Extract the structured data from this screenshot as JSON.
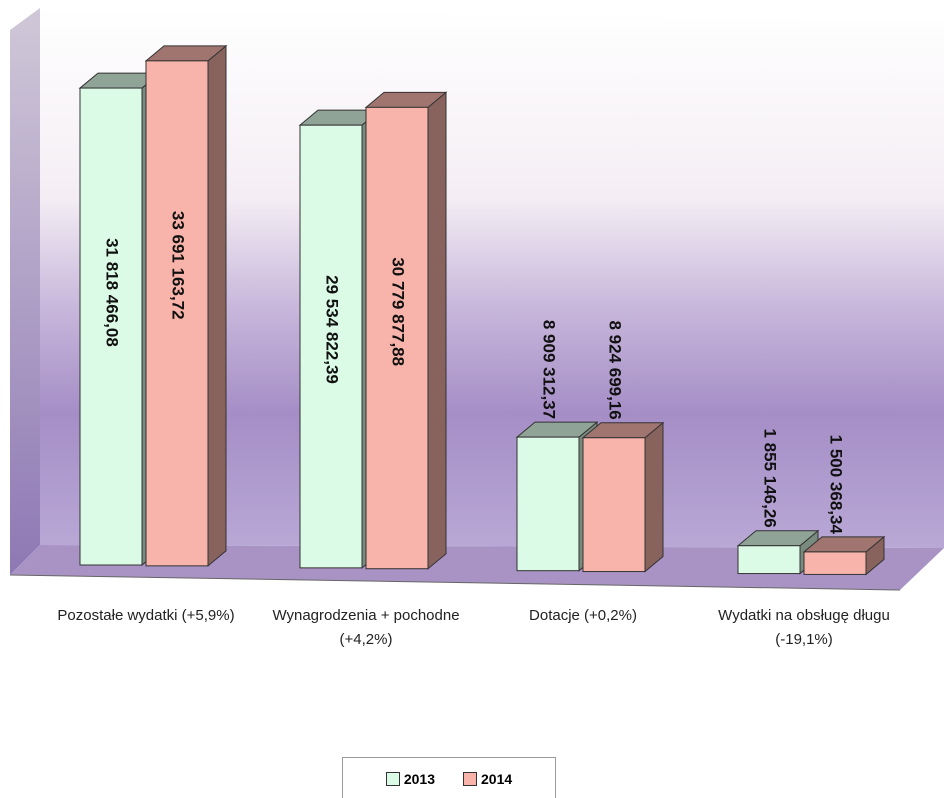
{
  "chart_data": {
    "type": "bar3d",
    "categories": [
      "Pozostałe wydatki (+5,9%)",
      "Wynagrodzenia + pochodne (+4,2%)",
      "Dotacje (+0,2%)",
      "Wydatki na obsługę długu (-19,1%)"
    ],
    "series": [
      {
        "name": "2013",
        "color": "#dcfbe6",
        "values": [
          31818466.08,
          29534822.39,
          8909312.37,
          1855146.26
        ],
        "value_labels": [
          "31 818 466,08",
          "29 534 822,39",
          "8 909 312,37",
          "1 855 146,26"
        ]
      },
      {
        "name": "2014",
        "color": "#f8b4aa",
        "values": [
          33691163.72,
          30779877.88,
          8924699.16,
          1500368.34
        ],
        "value_labels": [
          "33 691 163,72",
          "30 779 877,88",
          "8 924 699,16",
          "1 500 368,34"
        ]
      }
    ],
    "legend": "bottom"
  }
}
